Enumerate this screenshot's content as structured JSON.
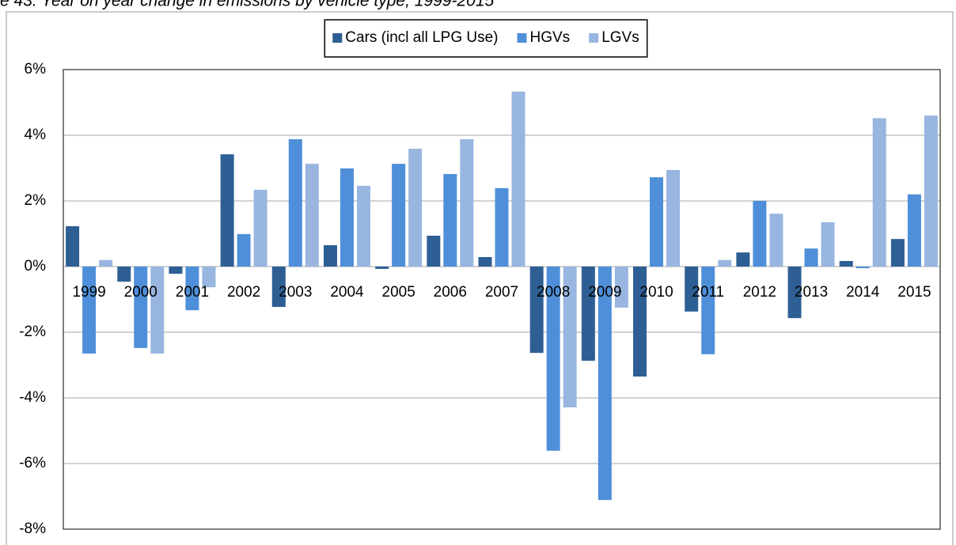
{
  "chart_data": {
    "type": "bar",
    "title": "e 43: Year on year change in emissions by vehicle type, 1999-2015",
    "categories": [
      "1999",
      "2000",
      "2001",
      "2002",
      "2003",
      "2004",
      "2005",
      "2006",
      "2007",
      "2008",
      "2009",
      "2010",
      "2011",
      "2012",
      "2013",
      "2014",
      "2015"
    ],
    "series": [
      {
        "name": "Cars (incl all LPG Use)",
        "color": "#2e5f94",
        "values": [
          1.23,
          -0.46,
          -0.22,
          3.42,
          -1.23,
          0.65,
          -0.07,
          0.94,
          0.29,
          -2.63,
          -2.87,
          -3.35,
          -1.37,
          0.43,
          -1.57,
          0.17,
          0.84
        ]
      },
      {
        "name": "HGVs",
        "color": "#4f8fd9",
        "values": [
          -2.65,
          -2.48,
          -1.33,
          0.99,
          3.88,
          2.99,
          3.13,
          2.82,
          2.39,
          -5.61,
          -7.11,
          2.72,
          -2.67,
          2.0,
          0.55,
          -0.05,
          2.2
        ]
      },
      {
        "name": "LGVs",
        "color": "#98b6df",
        "values": [
          0.2,
          -2.65,
          -0.63,
          2.34,
          3.13,
          2.46,
          3.59,
          3.88,
          5.33,
          -4.29,
          -1.25,
          2.94,
          0.2,
          1.61,
          1.35,
          4.52,
          4.6
        ]
      }
    ],
    "ylim": [
      -8,
      6
    ],
    "yticks": [
      {
        "value": -8,
        "label": "-8%"
      },
      {
        "value": -6,
        "label": "-6%"
      },
      {
        "value": -4,
        "label": "-4%"
      },
      {
        "value": -2,
        "label": "-2%"
      },
      {
        "value": 0,
        "label": "0%"
      },
      {
        "value": 2,
        "label": "2%"
      },
      {
        "value": 4,
        "label": "4%"
      },
      {
        "value": 6,
        "label": "6%"
      }
    ],
    "grid": true,
    "legend": "top"
  }
}
